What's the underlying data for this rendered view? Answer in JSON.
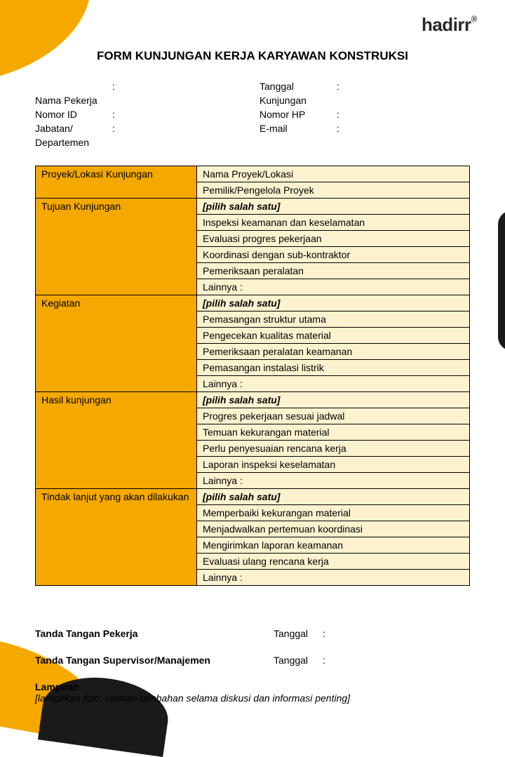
{
  "brand": "hadirr",
  "title": "FORM KUNJUNGAN KERJA KARYAWAN KONSTRUKSI",
  "header": {
    "row1_left_label": "",
    "row1_right_label": "Tanggal",
    "row2_left_label": "Nama Pekerja",
    "row2_right_label": "Kunjungan",
    "row3_left_label": "Nomor ID",
    "row3_right_label": "Nomor HP",
    "row4_left_label": "Jabatan/",
    "row4_right_label": "E-mail",
    "row5_left_label": "Departemen"
  },
  "table": {
    "sections": [
      {
        "category": "Proyek/Lokasi Kunjungan",
        "rows": [
          "Nama Proyek/Lokasi",
          "Pemilik/Pengelola Proyek"
        ],
        "italic": [
          false,
          false
        ]
      },
      {
        "category": "Tujuan Kunjungan",
        "rows": [
          "[pilih salah satu]",
          "Inspeksi keamanan dan keselamatan",
          "Evaluasi progres pekerjaan",
          "Koordinasi dengan sub-kontraktor",
          "Pemeriksaan peralatan",
          "Lainnya :"
        ],
        "italic": [
          true,
          false,
          false,
          false,
          false,
          false
        ]
      },
      {
        "category": "Kegiatan",
        "rows": [
          "[pilih salah satu]",
          "Pemasangan struktur utama",
          "Pengecekan kualitas material",
          "Pemeriksaan peralatan keamanan",
          "Pemasangan instalasi listrik",
          "Lainnya :"
        ],
        "italic": [
          true,
          false,
          false,
          false,
          false,
          false
        ]
      },
      {
        "category": "Hasil kunjungan",
        "rows": [
          "[pilih salah satu]",
          "Progres pekerjaan sesuai jadwal",
          "Temuan kekurangan material",
          "Perlu penyesuaian rencana kerja",
          "Laporan inspeksi keselamatan",
          "Lainnya :"
        ],
        "italic": [
          true,
          false,
          false,
          false,
          false,
          false
        ]
      },
      {
        "category": "Tindak lanjut yang akan dilakukan",
        "rows": [
          "[pilih salah satu]",
          "Memperbaiki kekurangan material",
          "Menjadwalkan pertemuan koordinasi",
          "Mengirimkan laporan keamanan",
          "Evaluasi ulang rencana kerja",
          "Lainnya :"
        ],
        "italic": [
          true,
          false,
          false,
          false,
          false,
          false
        ]
      }
    ]
  },
  "signatures": {
    "worker": "Tanda Tangan Pekerja",
    "supervisor": "Tanda Tangan Supervisor/Manajemen",
    "date_label": "Tanggal"
  },
  "attachment": {
    "title": "Lampiran",
    "note": "[lampirkan foto, catatan tambahan selama diskusi dan informasi penting]"
  },
  "colors": {
    "accent": "#f5a800",
    "table_fill": "#fdf2d0",
    "dark": "#1a1a1a"
  }
}
